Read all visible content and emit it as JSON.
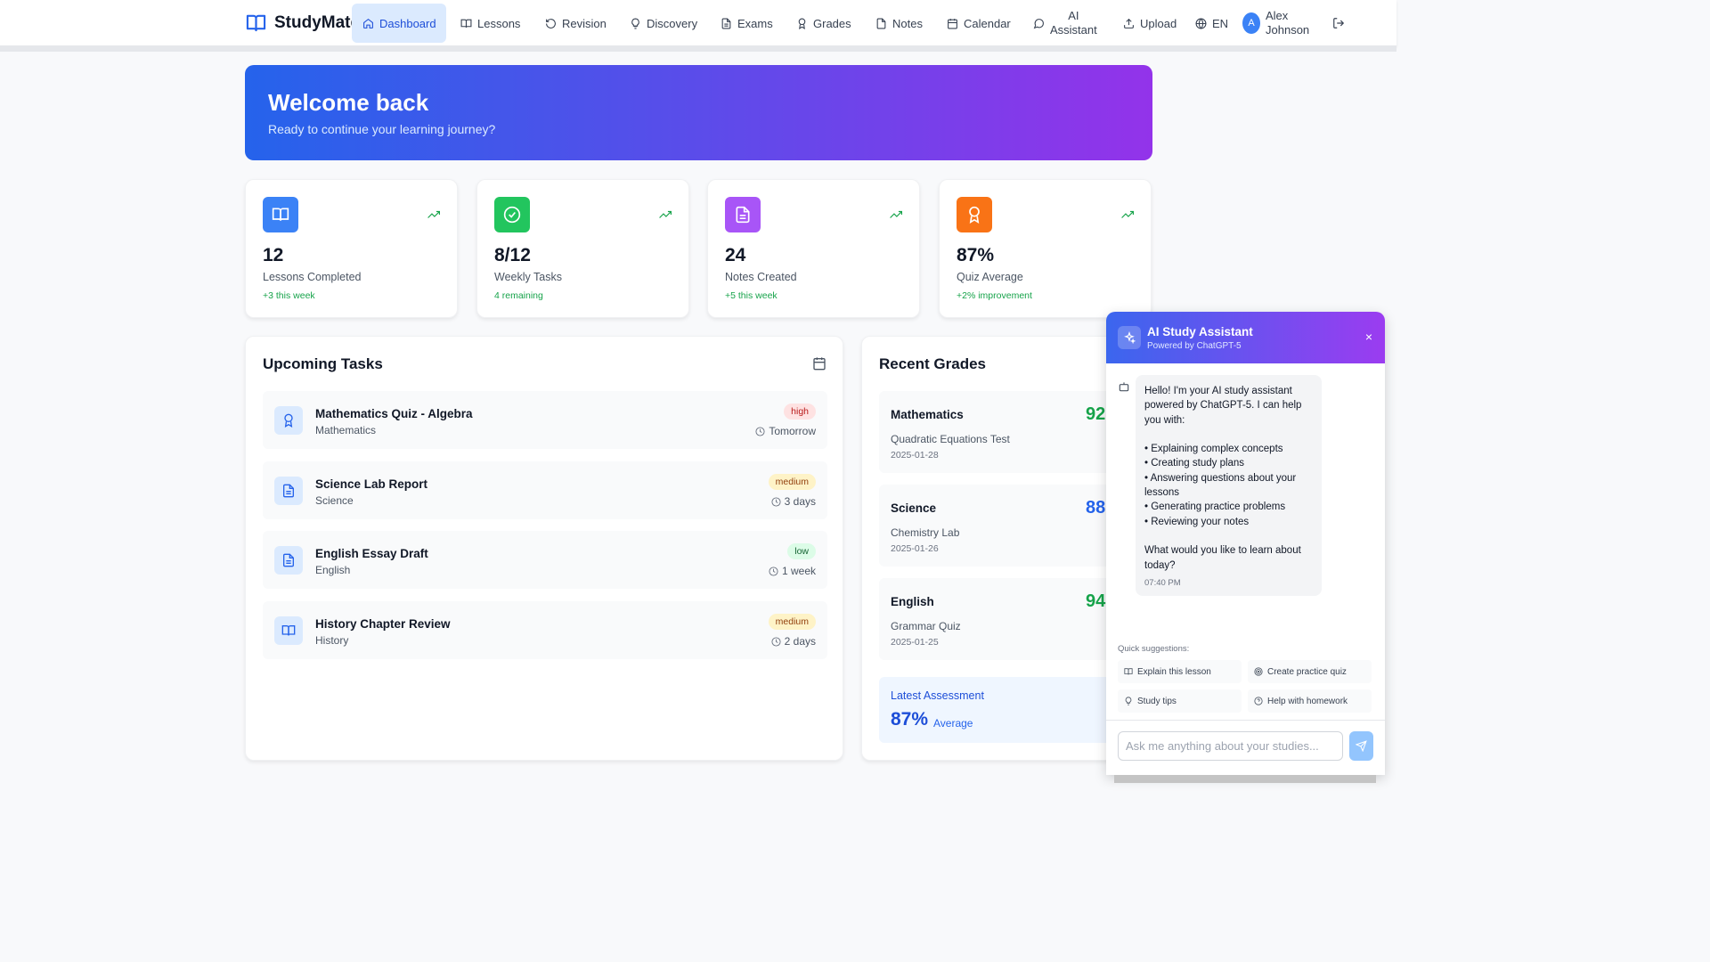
{
  "brand": {
    "name": "StudyMate"
  },
  "nav": {
    "items": [
      {
        "label": "Dashboard",
        "icon": "home-icon",
        "active": true
      },
      {
        "label": "Lessons",
        "icon": "book-icon"
      },
      {
        "label": "Revision",
        "icon": "rotate-icon"
      },
      {
        "label": "Discovery",
        "icon": "lightbulb-icon"
      },
      {
        "label": "Exams",
        "icon": "file-text-icon"
      },
      {
        "label": "Grades",
        "icon": "award-icon"
      },
      {
        "label": "Notes",
        "icon": "file-icon"
      },
      {
        "label": "Calendar",
        "icon": "calendar-icon"
      },
      {
        "label_line1": "AI",
        "label_line2": "Assistant",
        "icon": "message-icon"
      },
      {
        "label": "Upload",
        "icon": "upload-icon"
      },
      {
        "label": "EN",
        "icon": "globe-icon"
      }
    ],
    "user": {
      "initial": "A",
      "first": "Alex",
      "last": "Johnson"
    }
  },
  "hero": {
    "title": "Welcome back",
    "subtitle": "Ready to continue your learning journey?"
  },
  "stats": [
    {
      "value": "12",
      "label": "Lessons Completed",
      "change": "+3 this week",
      "color": "#3b82f6",
      "icon": "book-icon"
    },
    {
      "value": "8/12",
      "label": "Weekly Tasks",
      "change": "4 remaining",
      "color": "#22c55e",
      "icon": "check-circle-icon"
    },
    {
      "value": "24",
      "label": "Notes Created",
      "change": "+5 this week",
      "color": "#a855f7",
      "icon": "file-text-icon"
    },
    {
      "value": "87%",
      "label": "Quiz Average",
      "change": "+2% improvement",
      "color": "#f97316",
      "icon": "award-icon"
    }
  ],
  "tasks": {
    "title": "Upcoming Tasks",
    "items": [
      {
        "name": "Mathematics Quiz - Algebra",
        "subject": "Mathematics",
        "priority": "high",
        "due": "Tomorrow",
        "icon": "award-icon"
      },
      {
        "name": "Science Lab Report",
        "subject": "Science",
        "priority": "medium",
        "due": "3 days",
        "icon": "file-text-icon"
      },
      {
        "name": "English Essay Draft",
        "subject": "English",
        "priority": "low",
        "due": "1 week",
        "icon": "file-text-icon"
      },
      {
        "name": "History Chapter Review",
        "subject": "History",
        "priority": "medium",
        "due": "2 days",
        "icon": "book-icon"
      }
    ]
  },
  "grades": {
    "title": "Recent Grades",
    "items": [
      {
        "subject": "Mathematics",
        "score": "92",
        "test": "Quadratic Equations Test",
        "date": "2025-01-28",
        "color": "#16a34a"
      },
      {
        "subject": "Science",
        "score": "88",
        "test": "Chemistry Lab",
        "date": "2025-01-26",
        "color": "#2563eb"
      },
      {
        "subject": "English",
        "score": "94",
        "test": "Grammar Quiz",
        "date": "2025-01-25",
        "color": "#16a34a"
      }
    ],
    "latest": {
      "title": "Latest Assessment",
      "value": "87%",
      "sub": "Average"
    }
  },
  "chat": {
    "title": "AI Study Assistant",
    "subtitle": "Powered by ChatGPT-5",
    "close": "×",
    "message_lines": [
      "Hello! I'm your AI study assistant",
      "powered by ChatGPT-5. I can help",
      "you with:",
      "",
      "• Explaining complex concepts",
      "• Creating study plans",
      "• Answering questions about your",
      "lessons",
      "• Generating practice problems",
      "• Reviewing your notes",
      "",
      "What would you like to learn about",
      "today?"
    ],
    "time": "07:40 PM",
    "suggestions_label": "Quick suggestions:",
    "suggestions": [
      {
        "label": "Explain this lesson",
        "icon": "book-icon"
      },
      {
        "label": "Create practice quiz",
        "icon": "target-icon"
      },
      {
        "label": "Study tips",
        "icon": "lightbulb-icon"
      },
      {
        "label": "Help with homework",
        "icon": "help-circle-icon"
      }
    ],
    "input_placeholder": "Ask me anything about your studies..."
  }
}
